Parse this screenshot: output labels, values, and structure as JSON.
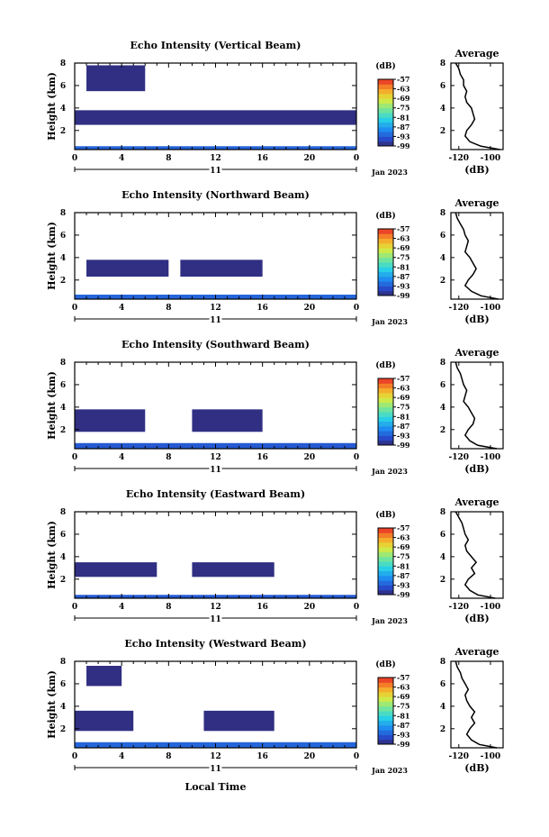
{
  "figure": {
    "xlabel": "Local Time",
    "date_day": "11",
    "date_month": "Jan 2023",
    "units_label": "(dB)"
  },
  "chart_data": [
    {
      "type": "heatmap",
      "title": "Echo Intensity (Vertical Beam)",
      "ylabel": "Height (km)",
      "xlim": [
        0,
        24
      ],
      "ylim": [
        0.3,
        8
      ],
      "x_ticks": [
        "0",
        "4",
        "8",
        "12",
        "16",
        "20",
        "0"
      ],
      "y_ticks": [
        "2",
        "4",
        "6",
        "8"
      ],
      "colorbar": {
        "min": -99,
        "max": -57,
        "ticks": [
          "-57",
          "-63",
          "-69",
          "-75",
          "-81",
          "-87",
          "-93",
          "-99"
        ]
      },
      "echo_layers": [
        {
          "x_start": 0,
          "x_end": 24,
          "y_bottom": 0.3,
          "y_top": 0.6,
          "value": -92
        },
        {
          "x_start": 0,
          "x_end": 24,
          "y_bottom": 2.5,
          "y_top": 3.8,
          "value": -98
        },
        {
          "x_start": 1,
          "x_end": 6,
          "y_bottom": 5.5,
          "y_top": 7.8,
          "value": -98
        }
      ],
      "profile": {
        "title": "Average",
        "xlabel": "(dB)",
        "x_ticks": [
          "-120",
          "-100"
        ],
        "xlim": [
          -125,
          -92
        ],
        "heights": [
          0.3,
          0.6,
          1.0,
          1.5,
          2.0,
          2.5,
          3.0,
          3.5,
          4.0,
          4.5,
          5.0,
          5.5,
          6.0,
          6.5,
          7.0,
          7.5,
          8.0
        ],
        "values": [
          -94,
          -106,
          -113,
          -116,
          -115,
          -112,
          -110,
          -111,
          -112,
          -115,
          -116,
          -115,
          -117,
          -117,
          -119,
          -120,
          -122
        ]
      }
    },
    {
      "type": "heatmap",
      "title": "Echo Intensity (Northward Beam)",
      "ylabel": "Height (km)",
      "xlim": [
        0,
        24
      ],
      "ylim": [
        0.3,
        8
      ],
      "x_ticks": [
        "0",
        "4",
        "8",
        "12",
        "16",
        "20",
        "0"
      ],
      "y_ticks": [
        "2",
        "4",
        "6",
        "8"
      ],
      "colorbar": {
        "min": -99,
        "max": -57,
        "ticks": [
          "-57",
          "-63",
          "-69",
          "-75",
          "-81",
          "-87",
          "-93",
          "-99"
        ]
      },
      "echo_layers": [
        {
          "x_start": 0,
          "x_end": 24,
          "y_bottom": 0.3,
          "y_top": 0.7,
          "value": -92
        },
        {
          "x_start": 1,
          "x_end": 8,
          "y_bottom": 2.3,
          "y_top": 3.8,
          "value": -98
        },
        {
          "x_start": 9,
          "x_end": 16,
          "y_bottom": 2.3,
          "y_top": 3.8,
          "value": -98
        }
      ],
      "profile": {
        "title": "Average",
        "xlabel": "(dB)",
        "x_ticks": [
          "-120",
          "-100"
        ],
        "xlim": [
          -125,
          -92
        ],
        "heights": [
          0.3,
          0.6,
          1.0,
          1.5,
          2.0,
          2.5,
          3.0,
          3.5,
          4.0,
          4.5,
          5.0,
          5.5,
          6.0,
          6.5,
          7.0,
          7.5,
          8.0
        ],
        "values": [
          -95,
          -106,
          -112,
          -116,
          -114,
          -111,
          -109,
          -111,
          -113,
          -116,
          -115,
          -114,
          -116,
          -117,
          -119,
          -121,
          -122
        ]
      }
    },
    {
      "type": "heatmap",
      "title": "Echo Intensity (Southward Beam)",
      "ylabel": "Height (km)",
      "xlim": [
        0,
        24
      ],
      "ylim": [
        0.3,
        8
      ],
      "x_ticks": [
        "0",
        "4",
        "8",
        "12",
        "16",
        "20",
        "0"
      ],
      "y_ticks": [
        "2",
        "4",
        "6",
        "8"
      ],
      "colorbar": {
        "min": -99,
        "max": -57,
        "ticks": [
          "-57",
          "-63",
          "-69",
          "-75",
          "-81",
          "-87",
          "-93",
          "-99"
        ]
      },
      "echo_layers": [
        {
          "x_start": 0,
          "x_end": 24,
          "y_bottom": 0.3,
          "y_top": 0.8,
          "value": -93
        },
        {
          "x_start": 0,
          "x_end": 6,
          "y_bottom": 1.8,
          "y_top": 3.8,
          "value": -98
        },
        {
          "x_start": 10,
          "x_end": 16,
          "y_bottom": 1.8,
          "y_top": 3.8,
          "value": -98
        }
      ],
      "profile": {
        "title": "Average",
        "xlabel": "(dB)",
        "x_ticks": [
          "-120",
          "-100"
        ],
        "xlim": [
          -125,
          -92
        ],
        "heights": [
          0.3,
          0.6,
          1.0,
          1.5,
          2.0,
          2.5,
          3.0,
          3.5,
          4.0,
          4.5,
          5.0,
          5.5,
          6.0,
          6.5,
          7.0,
          7.5,
          8.0
        ],
        "values": [
          -96,
          -108,
          -113,
          -116,
          -114,
          -111,
          -110,
          -112,
          -114,
          -117,
          -116,
          -115,
          -117,
          -118,
          -119,
          -121,
          -122
        ]
      }
    },
    {
      "type": "heatmap",
      "title": "Echo Intensity (Eastward Beam)",
      "ylabel": "Height (km)",
      "xlim": [
        0,
        24
      ],
      "ylim": [
        0.3,
        8
      ],
      "x_ticks": [
        "0",
        "4",
        "8",
        "12",
        "16",
        "20",
        "0"
      ],
      "y_ticks": [
        "2",
        "4",
        "6",
        "8"
      ],
      "colorbar": {
        "min": -99,
        "max": -57,
        "ticks": [
          "-57",
          "-63",
          "-69",
          "-75",
          "-81",
          "-87",
          "-93",
          "-99"
        ]
      },
      "echo_layers": [
        {
          "x_start": 0,
          "x_end": 24,
          "y_bottom": 0.3,
          "y_top": 0.6,
          "value": -93
        },
        {
          "x_start": 0,
          "x_end": 7,
          "y_bottom": 2.2,
          "y_top": 3.5,
          "value": -98
        },
        {
          "x_start": 10,
          "x_end": 17,
          "y_bottom": 2.2,
          "y_top": 3.5,
          "value": -98
        }
      ],
      "profile": {
        "title": "Average",
        "xlabel": "(dB)",
        "x_ticks": [
          "-120",
          "-100"
        ],
        "xlim": [
          -125,
          -92
        ],
        "heights": [
          0.3,
          0.6,
          1.0,
          1.5,
          2.0,
          2.5,
          3.0,
          3.5,
          4.0,
          4.5,
          5.0,
          5.5,
          6.0,
          6.5,
          7.0,
          7.5,
          8.0
        ],
        "values": [
          -97,
          -108,
          -113,
          -116,
          -114,
          -110,
          -112,
          -109,
          -112,
          -115,
          -116,
          -114,
          -116,
          -117,
          -118,
          -120,
          -122
        ]
      }
    },
    {
      "type": "heatmap",
      "title": "Echo Intensity (Westward Beam)",
      "ylabel": "Height (km)",
      "xlim": [
        0,
        24
      ],
      "ylim": [
        0.3,
        8
      ],
      "x_ticks": [
        "0",
        "4",
        "8",
        "12",
        "16",
        "20",
        "0"
      ],
      "y_ticks": [
        "2",
        "4",
        "6",
        "8"
      ],
      "colorbar": {
        "min": -99,
        "max": -57,
        "ticks": [
          "-57",
          "-63",
          "-69",
          "-75",
          "-81",
          "-87",
          "-93",
          "-99"
        ]
      },
      "echo_layers": [
        {
          "x_start": 0,
          "x_end": 24,
          "y_bottom": 0.3,
          "y_top": 0.8,
          "value": -92
        },
        {
          "x_start": 0,
          "x_end": 5,
          "y_bottom": 1.8,
          "y_top": 3.6,
          "value": -98
        },
        {
          "x_start": 11,
          "x_end": 17,
          "y_bottom": 1.8,
          "y_top": 3.6,
          "value": -98
        },
        {
          "x_start": 1,
          "x_end": 4,
          "y_bottom": 5.8,
          "y_top": 7.6,
          "value": -98
        }
      ],
      "profile": {
        "title": "Average",
        "xlabel": "(dB)",
        "x_ticks": [
          "-120",
          "-100"
        ],
        "xlim": [
          -125,
          -92
        ],
        "heights": [
          0.3,
          0.6,
          1.0,
          1.5,
          2.0,
          2.5,
          3.0,
          3.5,
          4.0,
          4.5,
          5.0,
          5.5,
          6.0,
          6.5,
          7.0,
          7.5,
          8.0
        ],
        "values": [
          -96,
          -107,
          -112,
          -115,
          -113,
          -110,
          -112,
          -110,
          -113,
          -115,
          -116,
          -114,
          -116,
          -118,
          -119,
          -121,
          -122
        ]
      }
    }
  ]
}
